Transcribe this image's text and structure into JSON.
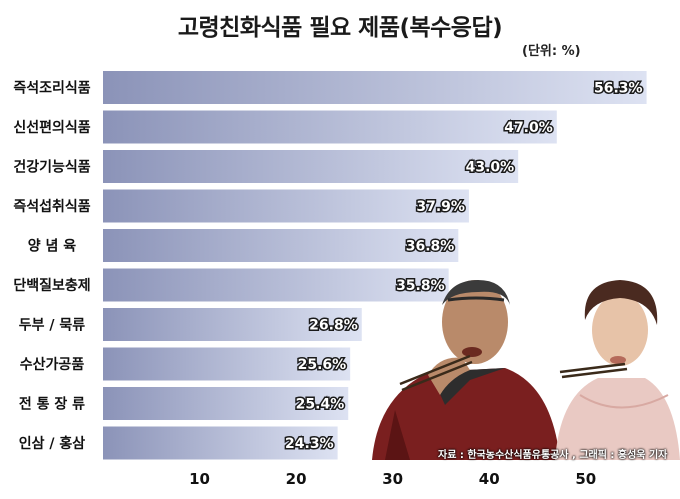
{
  "title": "고령친화식품 필요 제품(복수응답)",
  "unit": "(단위: %)",
  "source": "자료 : 한국농수산식품유통공사 , 그래픽 : 홍성욱 기자",
  "chart_data": {
    "type": "bar",
    "orientation": "horizontal",
    "title": "고령친화식품 필요 제품(복수응답)",
    "categories": [
      "즉석조리식품",
      "신선편의식품",
      "건강기능식품",
      "즉석섭취식품",
      "양 념 육",
      "단백질보충제",
      "두부 / 묵류",
      "수산가공품",
      "전 통 장 류",
      "인삼 / 홍삼"
    ],
    "values": [
      56.3,
      47.0,
      43.0,
      37.9,
      36.8,
      35.8,
      26.8,
      25.6,
      25.4,
      24.3
    ],
    "value_labels": [
      "56.3%",
      "47.0%",
      "43.0%",
      "37.9%",
      "36.8%",
      "35.8%",
      "26.8%",
      "25.6%",
      "25.4%",
      "24.3%"
    ],
    "xticks": [
      10,
      20,
      30,
      40,
      50
    ],
    "xlim": [
      0,
      58
    ],
    "grid": false,
    "bar_color_start": "#8b93b8",
    "bar_color_end": "#dde2f2"
  }
}
